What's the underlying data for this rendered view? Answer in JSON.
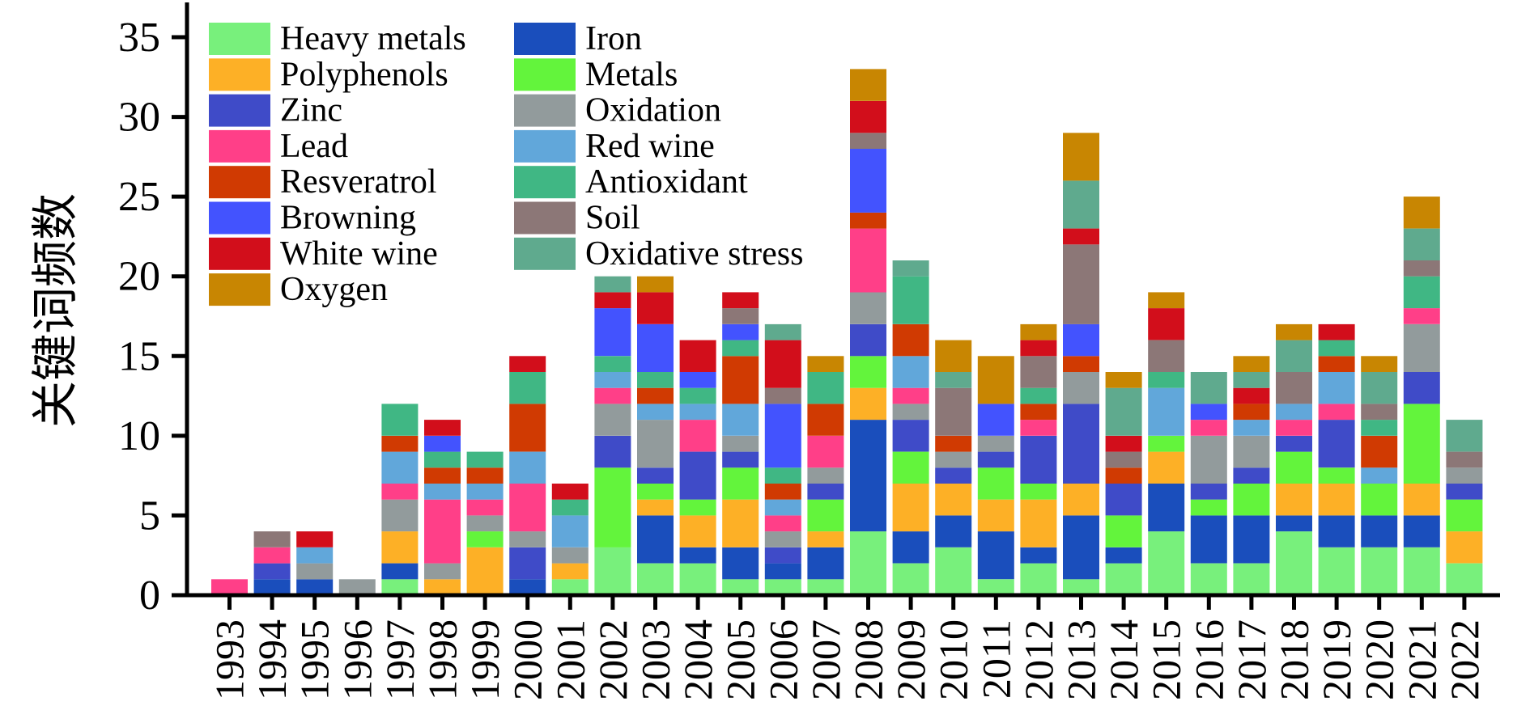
{
  "chart_data": {
    "type": "bar",
    "stacked": true,
    "title": "",
    "xlabel": "",
    "ylabel": "关键词频数",
    "ylim": [
      0,
      35
    ],
    "yticks": [
      0,
      5,
      10,
      15,
      20,
      25,
      30,
      35
    ],
    "grid": false,
    "legend_position": "top-left",
    "categories": [
      "1993",
      "1994",
      "1995",
      "1996",
      "1997",
      "1998",
      "1999",
      "2000",
      "2001",
      "2002",
      "2003",
      "2004",
      "2005",
      "2006",
      "2007",
      "2008",
      "2009",
      "2010",
      "2011",
      "2012",
      "2013",
      "2014",
      "2015",
      "2016",
      "2017",
      "2018",
      "2019",
      "2020",
      "2021",
      "2022"
    ],
    "series": [
      {
        "name": "Heavy metals",
        "color": "#78F07C",
        "values": [
          0,
          0,
          0,
          0,
          1,
          0,
          0,
          0,
          1,
          3,
          2,
          2,
          1,
          1,
          1,
          4,
          2,
          3,
          1,
          2,
          1,
          2,
          4,
          2,
          2,
          4,
          3,
          3,
          3,
          2
        ]
      },
      {
        "name": "Iron",
        "color": "#1A4EBC",
        "values": [
          0,
          1,
          1,
          0,
          1,
          0,
          0,
          1,
          0,
          0,
          3,
          1,
          2,
          1,
          2,
          7,
          2,
          2,
          3,
          1,
          4,
          1,
          3,
          3,
          3,
          1,
          2,
          2,
          2,
          0
        ]
      },
      {
        "name": "Polyphenols",
        "color": "#FDB026",
        "values": [
          0,
          0,
          0,
          0,
          2,
          1,
          3,
          0,
          1,
          0,
          1,
          2,
          3,
          0,
          1,
          2,
          3,
          2,
          2,
          3,
          2,
          0,
          2,
          0,
          0,
          2,
          2,
          0,
          2,
          2
        ]
      },
      {
        "name": "Metals",
        "color": "#63F43C",
        "values": [
          0,
          0,
          0,
          0,
          0,
          0,
          1,
          0,
          0,
          5,
          1,
          1,
          2,
          0,
          2,
          2,
          2,
          0,
          2,
          1,
          0,
          2,
          1,
          1,
          2,
          2,
          1,
          2,
          5,
          2
        ]
      },
      {
        "name": "Zinc",
        "color": "#3F4BC8",
        "values": [
          0,
          1,
          0,
          0,
          0,
          0,
          0,
          2,
          0,
          2,
          1,
          3,
          1,
          1,
          1,
          2,
          2,
          1,
          1,
          3,
          5,
          2,
          0,
          1,
          1,
          1,
          3,
          0,
          2,
          1
        ]
      },
      {
        "name": "Oxidation",
        "color": "#929B9C",
        "values": [
          0,
          0,
          1,
          1,
          2,
          1,
          1,
          1,
          1,
          2,
          3,
          0,
          1,
          1,
          1,
          2,
          1,
          1,
          1,
          0,
          2,
          0,
          0,
          3,
          2,
          0,
          0,
          0,
          3,
          1
        ]
      },
      {
        "name": "Lead",
        "color": "#FF3F88",
        "values": [
          1,
          1,
          0,
          0,
          1,
          4,
          1,
          3,
          0,
          1,
          0,
          2,
          0,
          1,
          2,
          4,
          1,
          0,
          0,
          1,
          0,
          0,
          0,
          1,
          0,
          1,
          1,
          0,
          1,
          0
        ]
      },
      {
        "name": "Red wine",
        "color": "#61A7DA",
        "values": [
          0,
          0,
          1,
          0,
          2,
          1,
          1,
          2,
          2,
          1,
          1,
          1,
          2,
          1,
          0,
          0,
          2,
          0,
          0,
          0,
          0,
          0,
          3,
          0,
          1,
          1,
          2,
          1,
          0,
          0
        ]
      },
      {
        "name": "Resveratrol",
        "color": "#D03A02",
        "values": [
          0,
          0,
          0,
          0,
          1,
          1,
          1,
          3,
          0,
          0,
          1,
          0,
          3,
          1,
          2,
          1,
          2,
          1,
          0,
          1,
          1,
          1,
          0,
          0,
          1,
          0,
          1,
          2,
          0,
          0
        ]
      },
      {
        "name": "Antioxidant",
        "color": "#40B784",
        "values": [
          0,
          0,
          0,
          0,
          2,
          1,
          1,
          2,
          1,
          1,
          1,
          1,
          1,
          1,
          2,
          0,
          3,
          0,
          0,
          1,
          0,
          0,
          1,
          0,
          0,
          0,
          1,
          1,
          2,
          0
        ]
      },
      {
        "name": "Browning",
        "color": "#4353FE",
        "values": [
          0,
          0,
          0,
          0,
          0,
          1,
          0,
          0,
          0,
          3,
          3,
          1,
          1,
          4,
          0,
          4,
          0,
          0,
          2,
          0,
          2,
          0,
          0,
          1,
          0,
          0,
          0,
          0,
          0,
          0
        ]
      },
      {
        "name": "Soil",
        "color": "#8C7777",
        "values": [
          0,
          1,
          0,
          0,
          0,
          0,
          0,
          0,
          0,
          0,
          0,
          0,
          1,
          1,
          0,
          1,
          0,
          3,
          0,
          2,
          5,
          1,
          2,
          0,
          0,
          2,
          0,
          1,
          1,
          1
        ]
      },
      {
        "name": "White wine",
        "color": "#D20E1B",
        "values": [
          0,
          0,
          1,
          0,
          0,
          1,
          0,
          1,
          1,
          1,
          2,
          2,
          1,
          3,
          0,
          2,
          0,
          0,
          0,
          1,
          1,
          1,
          2,
          0,
          1,
          0,
          1,
          0,
          0,
          0
        ]
      },
      {
        "name": "Oxidative stress",
        "color": "#5FAA8E",
        "values": [
          0,
          0,
          0,
          0,
          0,
          0,
          0,
          0,
          0,
          1,
          0,
          0,
          0,
          1,
          0,
          0,
          1,
          1,
          0,
          0,
          3,
          3,
          0,
          2,
          1,
          2,
          0,
          2,
          2,
          2
        ]
      },
      {
        "name": "Oxygen",
        "color": "#C88602",
        "values": [
          0,
          0,
          0,
          0,
          0,
          0,
          0,
          0,
          0,
          0,
          1,
          0,
          0,
          0,
          1,
          2,
          0,
          2,
          3,
          1,
          3,
          1,
          1,
          0,
          1,
          1,
          0,
          1,
          2,
          0
        ]
      }
    ],
    "totals": [
      1,
      4,
      4,
      1,
      12,
      11,
      9,
      15,
      7,
      20,
      20,
      16,
      19,
      17,
      15,
      33,
      21,
      16,
      15,
      17,
      29,
      14,
      19,
      14,
      15,
      17,
      17,
      15,
      25,
      11
    ],
    "legend_columns": [
      [
        "Heavy metals",
        "Polyphenols",
        "Zinc",
        "Lead",
        "Resveratrol",
        "Browning",
        "White wine",
        "Oxygen"
      ],
      [
        "Iron",
        "Metals",
        "Oxidation",
        "Red wine",
        "Antioxidant",
        "Soil",
        "Oxidative stress"
      ]
    ]
  }
}
